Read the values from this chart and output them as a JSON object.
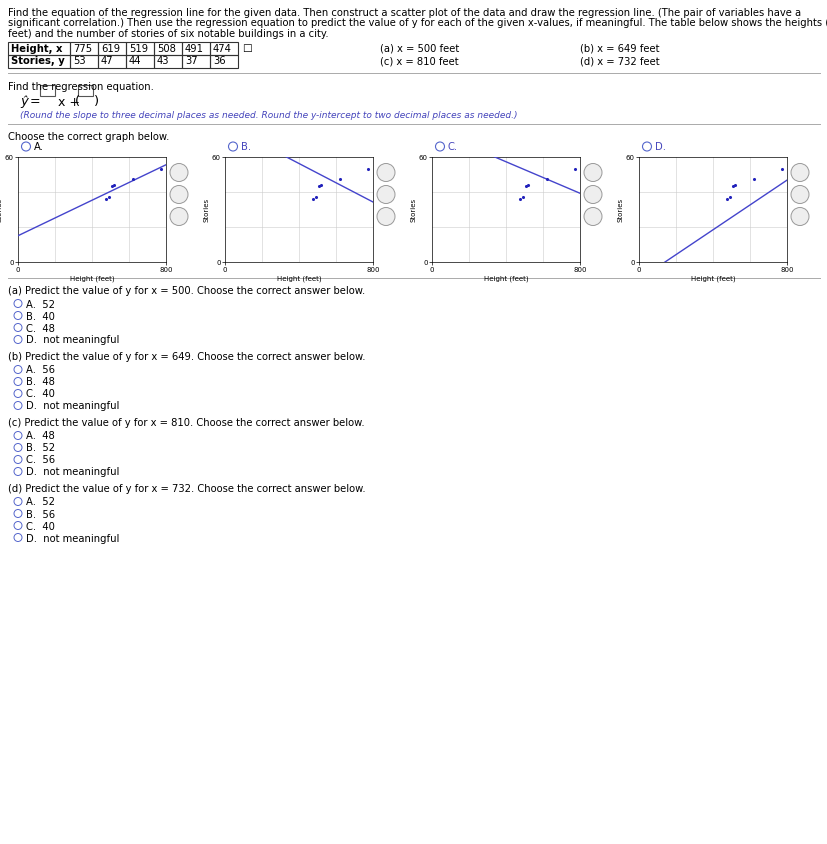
{
  "title_lines": [
    "Find the equation of the regression line for the given data. Then construct a scatter plot of the data and draw the regression line. (The pair of variables have a",
    "significant correlation.) Then use the regression equation to predict the value of y for each of the given x-values, if meaningful. The table below shows the heights (in",
    "feet) and the number of stories of six notable buildings in a city."
  ],
  "table_headers": [
    "Height, x",
    "775",
    "619",
    "519",
    "508",
    "491",
    "474"
  ],
  "table_row2": [
    "Stories, y",
    "53",
    "47",
    "44",
    "43",
    "37",
    "36"
  ],
  "x_values": [
    775,
    619,
    519,
    508,
    491,
    474
  ],
  "y_values": [
    53,
    47,
    44,
    43,
    37,
    36
  ],
  "x_predict_labels_col1": [
    "(a) x = 500 feet",
    "(c) x = 810 feet"
  ],
  "x_predict_labels_col2": [
    "(b) x = 649 feet",
    "(d) x = 732 feet"
  ],
  "regression_label": "Find the regression equation.",
  "regression_note": "(Round the slope to three decimal places as needed. Round the y-intercept to two decimal places as needed.)",
  "graph_section_label": "Choose the correct graph below.",
  "graph_labels": [
    "A.",
    "B.",
    "C.",
    "D."
  ],
  "graph_xlabel": "Height (feet)",
  "graph_ylabel": "Stories",
  "questions": [
    {
      "text": "(a) Predict the value of y for x = 500. Choose the correct answer below.",
      "options": [
        "A.  52",
        "B.  40",
        "C.  48",
        "D.  not meaningful"
      ]
    },
    {
      "text": "(b) Predict the value of y for x = 649. Choose the correct answer below.",
      "options": [
        "A.  56",
        "B.  48",
        "C.  40",
        "D.  not meaningful"
      ]
    },
    {
      "text": "(c) Predict the value of y for x = 810. Choose the correct answer below.",
      "options": [
        "A.  48",
        "B.  52",
        "C.  56",
        "D.  not meaningful"
      ]
    },
    {
      "text": "(d) Predict the value of y for x = 732. Choose the correct answer below.",
      "options": [
        "A.  52",
        "B.  56",
        "C.  40",
        "D.  not meaningful"
      ]
    }
  ],
  "bg_color": "#ffffff",
  "text_color": "#000000",
  "blue_text_color": "#4444bb",
  "radio_color": "#5566cc",
  "dot_color": "#2222bb",
  "line_color": "#4444cc",
  "grid_color": "#cccccc",
  "sep_color": "#aaaaaa",
  "table_border_color": "#333333",
  "box_color": "#555555"
}
